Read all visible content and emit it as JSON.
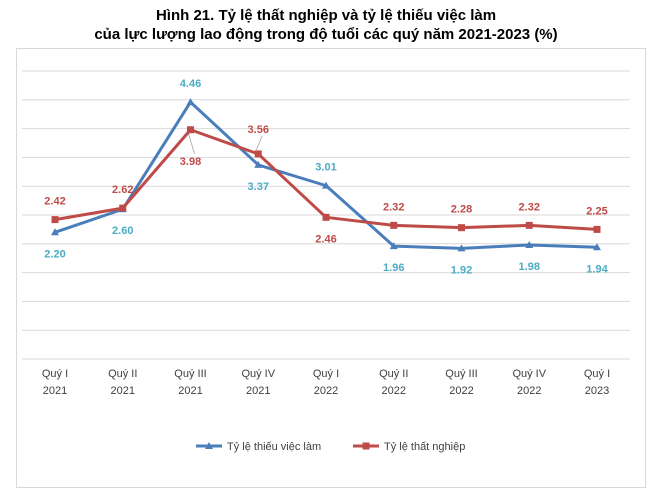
{
  "title_line1": "Hình 21. Tỷ lệ thất nghiệp và tỷ lệ thiếu việc làm",
  "title_line2": "của lực lượng lao động trong độ tuổi các quý năm 2021-2023 (%)",
  "chart_data": {
    "type": "line",
    "title": "Hình 21. Tỷ lệ thất nghiệp và tỷ lệ thiếu việc làm của lực lượng lao động trong độ tuổi các quý năm 2021-2023 (%)",
    "categories": [
      [
        "Quý I",
        "2021"
      ],
      [
        "Quý II",
        "2021"
      ],
      [
        "Quý III",
        "2021"
      ],
      [
        "Quý IV",
        "2021"
      ],
      [
        "Quý I",
        "2022"
      ],
      [
        "Quý II",
        "2022"
      ],
      [
        "Quý III",
        "2022"
      ],
      [
        "Quý IV",
        "2022"
      ],
      [
        "Quý I",
        "2023"
      ]
    ],
    "series": [
      {
        "name": "Tỷ lệ thiếu việc làm",
        "color": "#4a7ebb",
        "label_color": "#4bacc6",
        "marker": "triangle",
        "values": [
          2.2,
          2.6,
          4.46,
          3.37,
          3.01,
          1.96,
          1.92,
          1.98,
          1.94
        ],
        "labels": [
          "2.20",
          "2.60",
          "4.46",
          "3.37",
          "3.01",
          "1.96",
          "1.92",
          "1.98",
          "1.94"
        ]
      },
      {
        "name": "Tỷ lệ thất nghiệp",
        "color": "#be4b48",
        "label_color": "#be4b48",
        "marker": "square",
        "values": [
          2.42,
          2.62,
          3.98,
          3.56,
          2.46,
          2.32,
          2.28,
          2.32,
          2.25
        ],
        "labels": [
          "2.42",
          "2.62",
          "3.98",
          "3.56",
          "2.46",
          "2.32",
          "2.28",
          "2.32",
          "2.25"
        ]
      }
    ],
    "xlabel": "",
    "ylabel": "",
    "ylim": [
      0,
      5
    ],
    "grid": true,
    "legend": "bottom"
  }
}
